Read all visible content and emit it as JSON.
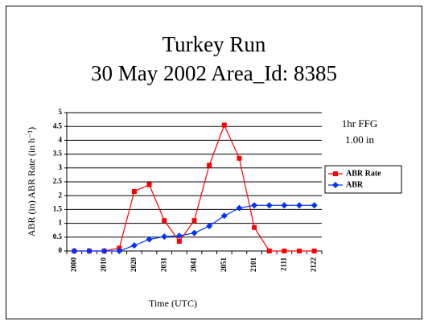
{
  "chart_data": {
    "type": "line",
    "title": [
      "Turkey Run",
      "30 May 2002  Area_Id: 8385"
    ],
    "x_label": "Time (UTC)",
    "y_label": "ABR (in) ABR Rate (in h⁻¹)",
    "annotations": [
      "1hr FFG",
      "1.00 in"
    ],
    "categories": [
      "2000",
      null,
      "2010",
      null,
      "2020",
      null,
      "2031",
      null,
      "2041",
      null,
      "2051",
      null,
      "2101",
      null,
      "2111",
      null,
      "2122"
    ],
    "series": [
      {
        "name": "ABR Rate",
        "color": "#ff0000",
        "marker": "square",
        "values": [
          0,
          0,
          0,
          0.1,
          2.15,
          2.4,
          1.1,
          0.35,
          1.1,
          3.1,
          4.55,
          3.35,
          0.85,
          0,
          0,
          0,
          0
        ]
      },
      {
        "name": "ABR",
        "color": "#0033ff",
        "marker": "diamond",
        "values": [
          0,
          0,
          0,
          0,
          0.2,
          0.42,
          0.52,
          0.55,
          0.65,
          0.9,
          1.27,
          1.55,
          1.65,
          1.65,
          1.65,
          1.65,
          1.65
        ]
      }
    ],
    "ylim": [
      0,
      5
    ],
    "yticks": [
      0,
      0.5,
      1,
      1.5,
      2,
      2.5,
      3,
      3.5,
      4,
      4.5,
      5
    ],
    "grid": true,
    "legend": "right"
  }
}
